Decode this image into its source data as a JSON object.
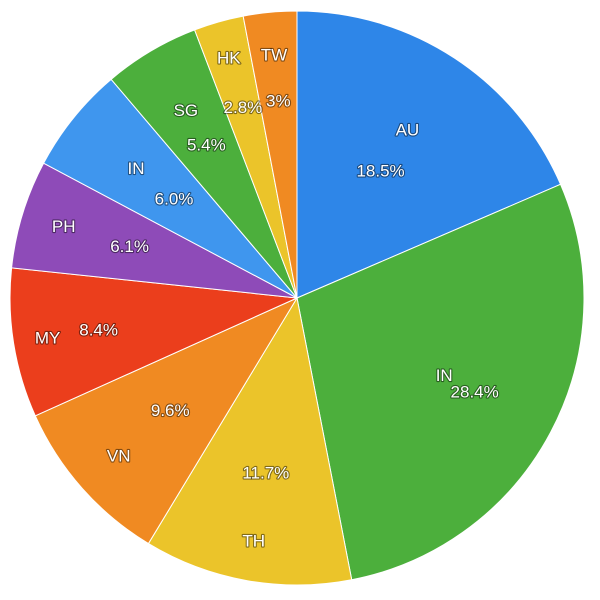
{
  "chart_data": {
    "type": "pie",
    "title": "",
    "start": "12 o'clock",
    "direction": "clockwise",
    "slices": [
      {
        "name": "AU",
        "value": 18.5,
        "label": "18.5%",
        "color": "#2E86E8"
      },
      {
        "name": "IN",
        "value": 28.4,
        "label": "28.4%",
        "color": "#4CAF3C"
      },
      {
        "name": "TH",
        "value": 11.7,
        "label": "11.7%",
        "color": "#EBC42A"
      },
      {
        "name": "VN",
        "value": 9.6,
        "label": "9.6%",
        "color": "#F08A22"
      },
      {
        "name": "MY",
        "value": 8.4,
        "label": "8.4%",
        "color": "#EB3E1C"
      },
      {
        "name": "PH",
        "value": 6.1,
        "label": "6.1%",
        "color": "#8E4BB8"
      },
      {
        "name": "IN",
        "value": 6.0,
        "label": "6.0%",
        "color": "#3F96EE"
      },
      {
        "name": "SG",
        "value": 5.4,
        "label": "5.4%",
        "color": "#4CAF3C"
      },
      {
        "name": "HK",
        "value": 2.8,
        "label": "2.8%",
        "color": "#EBC42A"
      },
      {
        "name": "TW",
        "value": 3.0,
        "label": "3%",
        "color": "#F08A22"
      }
    ]
  }
}
